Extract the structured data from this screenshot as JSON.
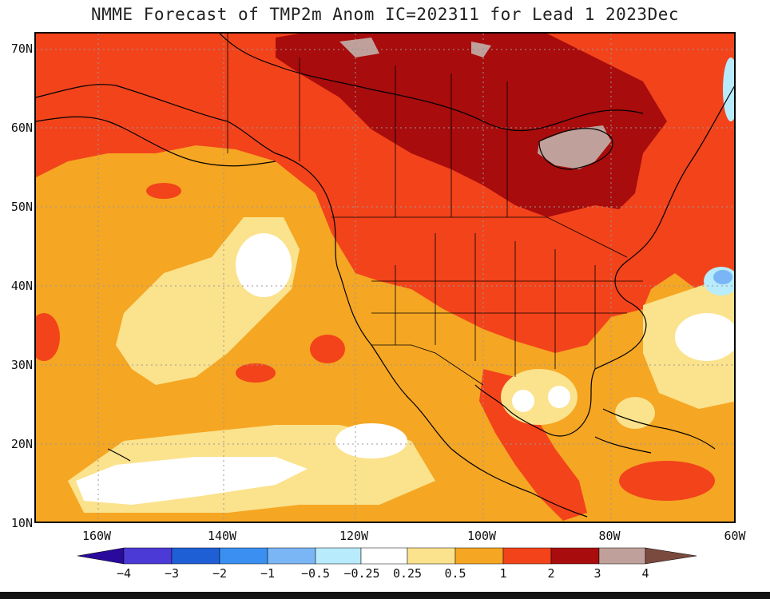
{
  "title": "NMME Forecast of TMP2m Anom IC=202311 for Lead 1 2023Dec",
  "latitude_labels": [
    "70N",
    "60N",
    "50N",
    "40N",
    "30N",
    "20N",
    "10N"
  ],
  "longitude_labels": [
    "160W",
    "140W",
    "120W",
    "100W",
    "80W",
    "60W"
  ],
  "colorbar": {
    "labels": [
      "−4",
      "−3",
      "−2",
      "−1",
      "−0.5",
      "−0.25",
      "0.25",
      "0.5",
      "1",
      "2",
      "3",
      "4"
    ],
    "colors": [
      "#2a0a9c",
      "#4b3ad6",
      "#1f5fd6",
      "#3b8ff0",
      "#7ab6f5",
      "#b8ebfb",
      "#ffffff",
      "#fbe28c",
      "#f5a623",
      "#f2431b",
      "#a80c0c",
      "#c0a09a",
      "#7a4a3e"
    ]
  },
  "colors": {
    "very_high": "#a80c0c",
    "high": "#f2431b",
    "moderate": "#f5a623",
    "low": "#fbe28c",
    "near_zero": "#ffffff",
    "extreme": "#c0a09a",
    "slight_cool": "#b8ebfb",
    "cool": "#7ab6f5"
  }
}
